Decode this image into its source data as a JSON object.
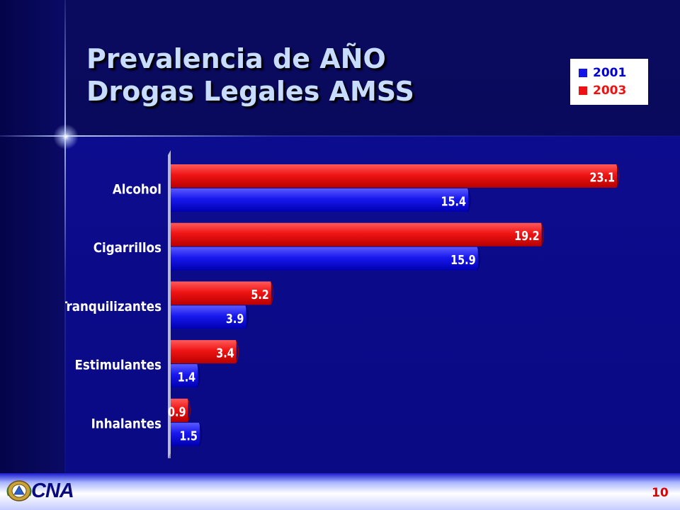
{
  "slide": {
    "title_line1": "Prevalencia de AÑO",
    "title_line2": "Drogas Legales AMSS",
    "footer_org": "CNA",
    "page_number": "10"
  },
  "colors": {
    "series_2001": "#1414e8",
    "series_2003": "#ee1111",
    "title_text": "#c8dcff",
    "background": "#0a0a84"
  },
  "chart_data": {
    "type": "bar",
    "orientation": "horizontal",
    "title": "",
    "xlabel": "",
    "ylabel": "",
    "categories": [
      "Alcohol",
      "Cigarrillos",
      "Tranquilizantes",
      "Estimulantes",
      "Inhalantes"
    ],
    "series": [
      {
        "name": "2003",
        "values": [
          23.1,
          19.2,
          5.2,
          3.4,
          0.9
        ],
        "color": "#ee1111"
      },
      {
        "name": "2001",
        "values": [
          15.4,
          15.9,
          3.9,
          1.4,
          1.5
        ],
        "color": "#1414e8"
      }
    ],
    "legend": [
      "2001",
      "2003"
    ],
    "legend_position": "top-right",
    "data_labels": true,
    "grid": false,
    "xlim": [
      0,
      23.1
    ]
  }
}
